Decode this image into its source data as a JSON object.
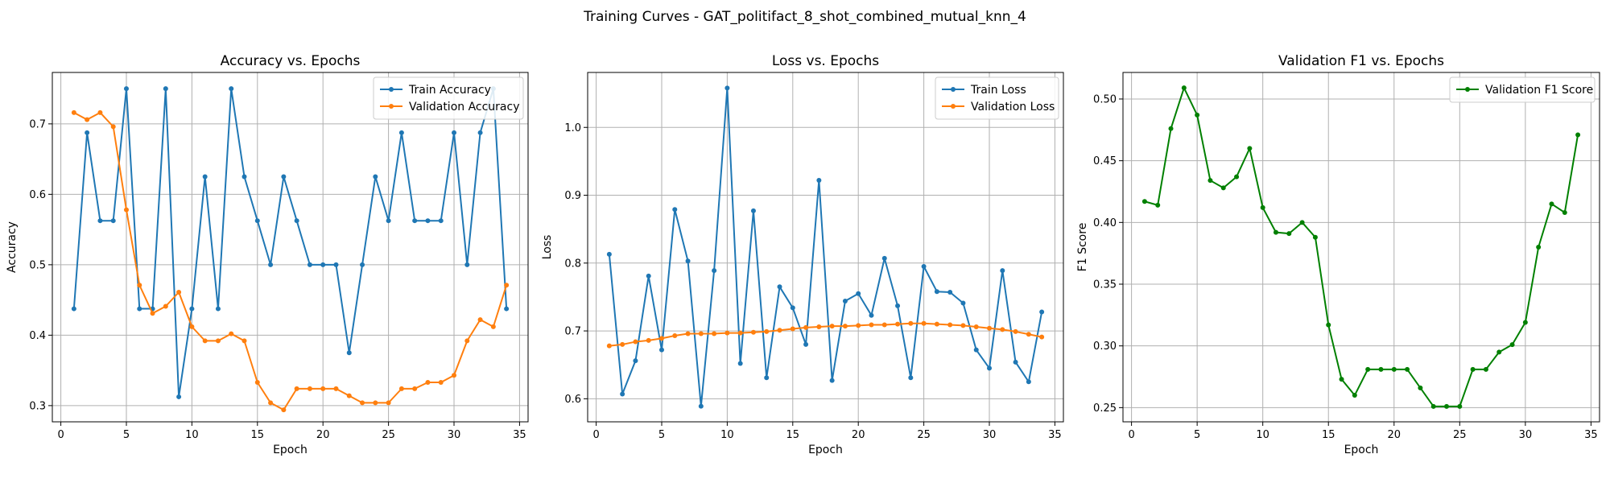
{
  "suptitle": "Training Curves - GAT_politifact_8_shot_combined_mutual_knn_4",
  "chart_data": [
    {
      "type": "line",
      "title": "Accuracy vs. Epochs",
      "xlabel": "Epoch",
      "ylabel": "Accuracy",
      "xlim": [
        -0.65,
        35.65
      ],
      "ylim": [
        0.277,
        0.773
      ],
      "xticks": [
        0,
        5,
        10,
        15,
        20,
        25,
        30,
        35
      ],
      "yticks": [
        0.3,
        0.4,
        0.5,
        0.6,
        0.7
      ],
      "grid": true,
      "legend_position": "top-right",
      "x": [
        1,
        2,
        3,
        4,
        5,
        6,
        7,
        8,
        9,
        10,
        11,
        12,
        13,
        14,
        15,
        16,
        17,
        18,
        19,
        20,
        21,
        22,
        23,
        24,
        25,
        26,
        27,
        28,
        29,
        30,
        31,
        32,
        33,
        34
      ],
      "series": [
        {
          "name": "Train Accuracy",
          "color": "#1f77b4",
          "values": [
            0.4375,
            0.6875,
            0.5625,
            0.5625,
            0.75,
            0.4375,
            0.4375,
            0.75,
            0.3125,
            0.4375,
            0.625,
            0.4375,
            0.75,
            0.625,
            0.5625,
            0.5,
            0.625,
            0.5625,
            0.5,
            0.5,
            0.5,
            0.375,
            0.5,
            0.625,
            0.5625,
            0.6875,
            0.5625,
            0.5625,
            0.5625,
            0.6875,
            0.5,
            0.6875,
            0.75,
            0.4375
          ]
        },
        {
          "name": "Validation Accuracy",
          "color": "#ff7f0e",
          "values": [
            0.716,
            0.706,
            0.716,
            0.696,
            0.578,
            0.471,
            0.431,
            0.441,
            0.461,
            0.412,
            0.392,
            0.392,
            0.402,
            0.392,
            0.333,
            0.304,
            0.294,
            0.324,
            0.324,
            0.324,
            0.324,
            0.314,
            0.304,
            0.304,
            0.304,
            0.324,
            0.324,
            0.333,
            0.333,
            0.343,
            0.392,
            0.422,
            0.412,
            0.471
          ]
        }
      ]
    },
    {
      "type": "line",
      "title": "Loss vs. Epochs",
      "xlabel": "Epoch",
      "ylabel": "Loss",
      "xlim": [
        -0.65,
        35.65
      ],
      "ylim": [
        0.566,
        1.081
      ],
      "xticks": [
        0,
        5,
        10,
        15,
        20,
        25,
        30,
        35
      ],
      "yticks": [
        0.6,
        0.7,
        0.8,
        0.9,
        1.0
      ],
      "grid": true,
      "legend_position": "top-right",
      "x": [
        1,
        2,
        3,
        4,
        5,
        6,
        7,
        8,
        9,
        10,
        11,
        12,
        13,
        14,
        15,
        16,
        17,
        18,
        19,
        20,
        21,
        22,
        23,
        24,
        25,
        26,
        27,
        28,
        29,
        30,
        31,
        32,
        33,
        34
      ],
      "series": [
        {
          "name": "Train Loss",
          "color": "#1f77b4",
          "values": [
            0.813,
            0.607,
            0.656,
            0.781,
            0.672,
            0.879,
            0.803,
            0.589,
            0.789,
            1.058,
            0.652,
            0.877,
            0.631,
            0.765,
            0.734,
            0.68,
            0.922,
            0.627,
            0.744,
            0.755,
            0.723,
            0.807,
            0.737,
            0.631,
            0.795,
            0.758,
            0.757,
            0.741,
            0.672,
            0.645,
            0.789,
            0.654,
            0.625,
            0.728
          ]
        },
        {
          "name": "Validation Loss",
          "color": "#ff7f0e",
          "values": [
            0.678,
            0.68,
            0.684,
            0.686,
            0.689,
            0.693,
            0.696,
            0.696,
            0.696,
            0.697,
            0.697,
            0.698,
            0.699,
            0.701,
            0.703,
            0.705,
            0.706,
            0.707,
            0.707,
            0.708,
            0.709,
            0.709,
            0.71,
            0.711,
            0.711,
            0.71,
            0.709,
            0.708,
            0.706,
            0.704,
            0.702,
            0.699,
            0.695,
            0.691
          ]
        }
      ]
    },
    {
      "type": "line",
      "title": "Validation F1 vs. Epochs",
      "xlabel": "Epoch",
      "ylabel": "F1 Score",
      "xlim": [
        -0.65,
        35.65
      ],
      "ylim": [
        0.2385,
        0.5215
      ],
      "xticks": [
        0,
        5,
        10,
        15,
        20,
        25,
        30,
        35
      ],
      "yticks": [
        0.25,
        0.3,
        0.35,
        0.4,
        0.45,
        0.5
      ],
      "grid": true,
      "legend_position": "top-right",
      "x": [
        1,
        2,
        3,
        4,
        5,
        6,
        7,
        8,
        9,
        10,
        11,
        12,
        13,
        14,
        15,
        16,
        17,
        18,
        19,
        20,
        21,
        22,
        23,
        24,
        25,
        26,
        27,
        28,
        29,
        30,
        31,
        32,
        33,
        34
      ],
      "series": [
        {
          "name": "Validation F1 Score",
          "color": "#008000",
          "values": [
            0.417,
            0.414,
            0.476,
            0.509,
            0.487,
            0.434,
            0.428,
            0.437,
            0.46,
            0.412,
            0.392,
            0.391,
            0.4,
            0.388,
            0.317,
            0.273,
            0.26,
            0.281,
            0.281,
            0.281,
            0.281,
            0.266,
            0.251,
            0.251,
            0.251,
            0.281,
            0.281,
            0.295,
            0.301,
            0.319,
            0.38,
            0.415,
            0.408,
            0.471
          ]
        }
      ]
    }
  ]
}
